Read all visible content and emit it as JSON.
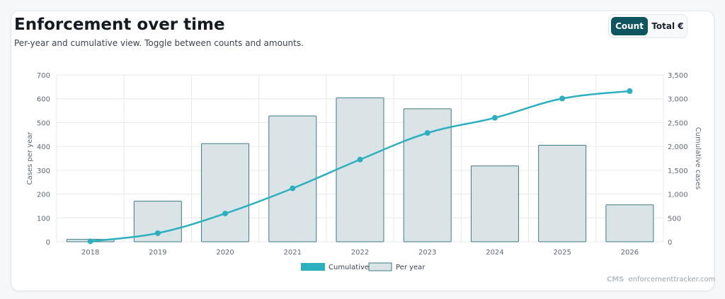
{
  "header": {
    "title": "Enforcement over time",
    "subtitle": "Per-year and cumulative view. Toggle between counts and amounts."
  },
  "toggle": {
    "count_label": "Count",
    "total_label": "Total €",
    "selected": "Count"
  },
  "brand": {
    "logo_text": "CMS",
    "site": "enforcementtracker.com"
  },
  "colors": {
    "cumulative_line": "#2bb0c0",
    "bar_fill": "#dae4e6",
    "bar_stroke": "#3f7a83",
    "grid": "#e6e9ec",
    "axis_text": "#5f6873"
  },
  "chart_data": {
    "type": "bar",
    "categories": [
      "2018",
      "2019",
      "2020",
      "2021",
      "2022",
      "2023",
      "2024",
      "2025",
      "2026"
    ],
    "series": [
      {
        "name": "Per year",
        "type": "bar",
        "axis": "left",
        "values": [
          10,
          170,
          412,
          528,
          604,
          558,
          318,
          405,
          155
        ]
      },
      {
        "name": "Cumulative",
        "type": "line",
        "axis": "right",
        "values": [
          10,
          180,
          592,
          1120,
          1724,
          2282,
          2600,
          3005,
          3160
        ]
      }
    ],
    "ylabel": "Cases per year",
    "y2label": "Cumulative cases",
    "ylim": [
      0,
      700
    ],
    "y2lim": [
      0,
      3500
    ],
    "yticks": [
      "0",
      "100",
      "200",
      "300",
      "400",
      "500",
      "600",
      "700"
    ],
    "y2ticks": [
      "0",
      "500",
      "1,000",
      "1,500",
      "2,000",
      "2,500",
      "3,000",
      "3,500"
    ],
    "legend": [
      "Cumulative",
      "Per year"
    ],
    "legend_position": "bottom-center",
    "grid": true
  }
}
